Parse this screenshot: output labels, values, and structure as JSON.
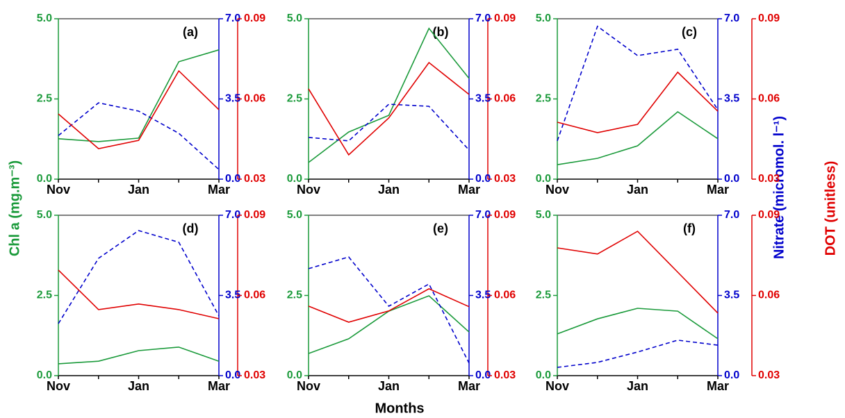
{
  "axis_titles": {
    "x": "Months",
    "y": "Chl a (mg.m⁻³)",
    "y2": "Nitrate (micromol. l⁻¹)",
    "y3": "DOT (unitless)"
  },
  "chart_data": [
    {
      "type": "line",
      "panel": "(a)",
      "categories": [
        "Nov",
        null,
        "Jan",
        null,
        "Mar"
      ],
      "ylim": [
        0,
        5
      ],
      "yticks": [
        {
          "value": 0,
          "label": "0.0"
        },
        {
          "value": 2.5,
          "label": "2.5"
        },
        {
          "value": 5,
          "label": "5.0"
        }
      ],
      "y2lim": [
        0,
        7
      ],
      "y2ticks": [
        {
          "value": 0,
          "label": "0.0"
        },
        {
          "value": 3.5,
          "label": "3.5"
        },
        {
          "value": 7,
          "label": "7.0"
        }
      ],
      "y3lim": [
        0.03,
        0.09
      ],
      "y3ticks": [
        0.03,
        0.06,
        0.09
      ],
      "series": [
        {
          "color": "#1a9a3a",
          "axis": "y",
          "dashed": false,
          "values": [
            1.26,
            1.17,
            1.28,
            3.66,
            4.03
          ]
        },
        {
          "color": "#0000cc",
          "axis": "y2",
          "dashed": true,
          "values": [
            1.9,
            3.33,
            2.97,
            2.0,
            0.42
          ]
        },
        {
          "color": "#e00000",
          "axis": "y3",
          "dashed": false,
          "values": [
            0.0544,
            0.0414,
            0.0445,
            0.0705,
            0.056
          ]
        }
      ]
    },
    {
      "type": "line",
      "panel": "(b)",
      "categories": [
        "Nov",
        null,
        "Jan",
        null,
        "Mar"
      ],
      "ylim": [
        0,
        5
      ],
      "yticks": [
        {
          "value": 0,
          "label": "0.0"
        },
        {
          "value": 2.5,
          "label": "2.5"
        },
        {
          "value": 5,
          "label": "5.0"
        }
      ],
      "y2lim": [
        0,
        7
      ],
      "y2ticks": [
        {
          "value": 0,
          "label": "0.0"
        },
        {
          "value": 3.5,
          "label": "3.5"
        },
        {
          "value": 7,
          "label": "7.0"
        }
      ],
      "y3lim": [
        0.03,
        0.09
      ],
      "y3ticks": [
        0.03,
        0.06,
        0.09
      ],
      "series": [
        {
          "color": "#1a9a3a",
          "axis": "y",
          "dashed": false,
          "values": [
            0.52,
            1.47,
            1.99,
            4.7,
            3.14
          ]
        },
        {
          "color": "#0000cc",
          "axis": "y2",
          "dashed": true,
          "values": [
            1.82,
            1.67,
            3.27,
            3.18,
            1.27
          ]
        },
        {
          "color": "#e00000",
          "axis": "y3",
          "dashed": false,
          "values": [
            0.0638,
            0.0391,
            0.0529,
            0.0736,
            0.0617
          ]
        }
      ]
    },
    {
      "type": "line",
      "panel": "(c)",
      "categories": [
        "Nov",
        null,
        "Jan",
        null,
        "Mar"
      ],
      "ylim": [
        0,
        5
      ],
      "yticks": [
        {
          "value": 0,
          "label": "0.0"
        },
        {
          "value": 2.5,
          "label": "2.5"
        },
        {
          "value": 5,
          "label": "5.0"
        }
      ],
      "y2lim": [
        0,
        7
      ],
      "y2ticks": [
        {
          "value": 0,
          "label": "0.0"
        },
        {
          "value": 3.5,
          "label": "3.5"
        },
        {
          "value": 7,
          "label": "7.0"
        }
      ],
      "y3lim": [
        0.03,
        0.09
      ],
      "y3ticks": [
        0.03,
        0.06,
        0.09
      ],
      "series": [
        {
          "color": "#1a9a3a",
          "axis": "y",
          "dashed": false,
          "values": [
            0.45,
            0.65,
            1.04,
            2.1,
            1.26
          ]
        },
        {
          "color": "#0000cc",
          "axis": "y2",
          "dashed": true,
          "values": [
            1.67,
            6.67,
            5.39,
            5.67,
            3.03
          ]
        },
        {
          "color": "#e00000",
          "axis": "y3",
          "dashed": false,
          "values": [
            0.0513,
            0.0474,
            0.0505,
            0.07,
            0.0554
          ]
        }
      ]
    },
    {
      "type": "line",
      "panel": "(d)",
      "categories": [
        "Nov",
        null,
        "Jan",
        null,
        "Mar"
      ],
      "ylim": [
        0,
        5
      ],
      "yticks": [
        {
          "value": 0,
          "label": "0.0"
        },
        {
          "value": 2.5,
          "label": "2.5"
        },
        {
          "value": 5,
          "label": "5.0"
        }
      ],
      "y2lim": [
        0,
        7
      ],
      "y2ticks": [
        {
          "value": 0,
          "label": "0.0"
        },
        {
          "value": 3.5,
          "label": "3.5"
        },
        {
          "value": 7,
          "label": "7.0"
        }
      ],
      "y3lim": [
        0.03,
        0.09
      ],
      "y3ticks": [
        0.03,
        0.06,
        0.09
      ],
      "series": [
        {
          "color": "#1a9a3a",
          "axis": "y",
          "dashed": false,
          "values": [
            0.37,
            0.45,
            0.78,
            0.89,
            0.45
          ]
        },
        {
          "color": "#0000cc",
          "axis": "y2",
          "dashed": true,
          "values": [
            2.27,
            5.12,
            6.33,
            5.82,
            2.61
          ]
        },
        {
          "color": "#e00000",
          "axis": "y3",
          "dashed": false,
          "values": [
            0.0695,
            0.0547,
            0.0568,
            0.0547,
            0.0513
          ]
        }
      ]
    },
    {
      "type": "line",
      "panel": "(e)",
      "categories": [
        "Nov",
        null,
        "Jan",
        null,
        "Mar"
      ],
      "ylim": [
        0,
        5
      ],
      "yticks": [
        {
          "value": 0,
          "label": "0.0"
        },
        {
          "value": 2.5,
          "label": "2.5"
        },
        {
          "value": 5,
          "label": "5.0"
        }
      ],
      "y2lim": [
        0,
        7
      ],
      "y2ticks": [
        {
          "value": 0,
          "label": "0.0"
        },
        {
          "value": 3.5,
          "label": "3.5"
        },
        {
          "value": 7,
          "label": "7.0"
        }
      ],
      "y3lim": [
        0.03,
        0.09
      ],
      "y3ticks": [
        0.03,
        0.06,
        0.09
      ],
      "series": [
        {
          "color": "#1a9a3a",
          "axis": "y",
          "dashed": false,
          "values": [
            0.69,
            1.15,
            2.01,
            2.49,
            1.36
          ]
        },
        {
          "color": "#0000cc",
          "axis": "y2",
          "dashed": true,
          "values": [
            4.67,
            5.18,
            3.03,
            4.0,
            0.55
          ]
        },
        {
          "color": "#e00000",
          "axis": "y3",
          "dashed": false,
          "values": [
            0.056,
            0.05,
            0.0542,
            0.0625,
            0.0558
          ]
        }
      ]
    },
    {
      "type": "line",
      "panel": "(f)",
      "categories": [
        "Nov",
        null,
        "Jan",
        null,
        "Mar"
      ],
      "ylim": [
        0,
        5
      ],
      "yticks": [
        {
          "value": 0,
          "label": "0.0"
        },
        {
          "value": 2.5,
          "label": "2.5"
        },
        {
          "value": 5,
          "label": "5.0"
        }
      ],
      "y2lim": [
        0,
        7
      ],
      "y2ticks": [
        {
          "value": 0,
          "label": "0.0"
        },
        {
          "value": 3.5,
          "label": "3.5"
        },
        {
          "value": 7,
          "label": "7.0"
        }
      ],
      "y3lim": [
        0.03,
        0.09
      ],
      "y3ticks": [
        0.03,
        0.06,
        0.09
      ],
      "series": [
        {
          "color": "#1a9a3a",
          "axis": "y",
          "dashed": false,
          "values": [
            1.3,
            1.77,
            2.1,
            2.01,
            1.15
          ]
        },
        {
          "color": "#0000cc",
          "axis": "y2",
          "dashed": true,
          "values": [
            0.36,
            0.58,
            1.03,
            1.55,
            1.33
          ]
        },
        {
          "color": "#e00000",
          "axis": "y3",
          "dashed": false,
          "values": [
            0.0778,
            0.0755,
            0.084,
            0.0687,
            0.0534
          ]
        }
      ]
    }
  ]
}
